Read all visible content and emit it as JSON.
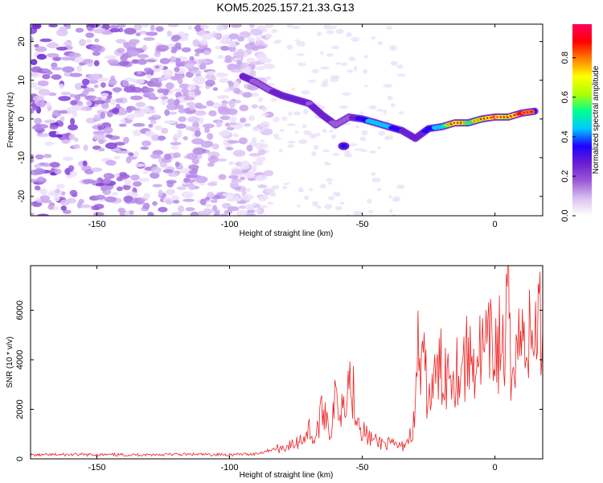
{
  "title": "KOM5.2025.157.21.33.G13",
  "chart_data": [
    {
      "type": "heatmap",
      "xlabel": "Height of straight line (km)",
      "ylabel": "Frequency (Hz)",
      "xlim": [
        -175,
        18
      ],
      "ylim": [
        -25,
        24.5
      ],
      "xticks": [
        -150,
        -100,
        -50,
        0
      ],
      "yticks": [
        -20,
        -10,
        0,
        10,
        20
      ],
      "colorbar": {
        "label": "Normalized spectral amplitude",
        "range": [
          0,
          0.97
        ],
        "ticks": [
          "0.0",
          "0.2",
          "0.4",
          "0.6",
          "0.8"
        ],
        "colors": [
          "#ffffff",
          "#d9c2f0",
          "#9b59d8",
          "#6a1fd0",
          "#2000ff",
          "#00c8ff",
          "#00ff90",
          "#b0ff00",
          "#ffff00",
          "#ff8000",
          "#ff0000",
          "#ff0060"
        ]
      },
      "ridge": [
        {
          "x": -95,
          "f": 11.0,
          "a": 0.25
        },
        {
          "x": -90,
          "f": 9.5,
          "a": 0.2
        },
        {
          "x": -85,
          "f": 7.5,
          "a": 0.22
        },
        {
          "x": -80,
          "f": 6.0,
          "a": 0.3
        },
        {
          "x": -75,
          "f": 5.0,
          "a": 0.28
        },
        {
          "x": -70,
          "f": 4.0,
          "a": 0.22
        },
        {
          "x": -65,
          "f": 1.0,
          "a": 0.25
        },
        {
          "x": -60,
          "f": -1.5,
          "a": 0.2
        },
        {
          "x": -55,
          "f": 0.5,
          "a": 0.22
        },
        {
          "x": -50,
          "f": 0.0,
          "a": 0.35
        },
        {
          "x": -45,
          "f": -1.0,
          "a": 0.45
        },
        {
          "x": -40,
          "f": -2.0,
          "a": 0.4
        },
        {
          "x": -35,
          "f": -3.0,
          "a": 0.3
        },
        {
          "x": -30,
          "f": -5.0,
          "a": 0.25
        },
        {
          "x": -25,
          "f": -2.5,
          "a": 0.35
        },
        {
          "x": -20,
          "f": -2.0,
          "a": 0.45
        },
        {
          "x": -15,
          "f": -1.0,
          "a": 0.7
        },
        {
          "x": -10,
          "f": -1.0,
          "a": 0.55
        },
        {
          "x": -5,
          "f": 0.0,
          "a": 0.6
        },
        {
          "x": 0,
          "f": 0.5,
          "a": 0.75
        },
        {
          "x": 5,
          "f": 0.5,
          "a": 0.6
        },
        {
          "x": 10,
          "f": 1.5,
          "a": 0.85
        },
        {
          "x": 15,
          "f": 2.0,
          "a": 0.8
        }
      ]
    },
    {
      "type": "line",
      "xlabel": "Height of straight line (km)",
      "ylabel": "SNR (10 * v/v)",
      "xlim": [
        -175,
        18
      ],
      "ylim": [
        0,
        7800
      ],
      "xticks": [
        -150,
        -100,
        -50,
        0
      ],
      "yticks": [
        0,
        2000,
        4000,
        6000
      ],
      "line_color": "#ee2222",
      "series": [
        {
          "x": [
            -175,
            -160,
            -140,
            -120,
            -100,
            -90,
            -85,
            -80,
            -75,
            -72,
            -70,
            -68,
            -66,
            -64,
            -62,
            -60,
            -58,
            -56,
            -55,
            -53,
            -51,
            -50,
            -48,
            -45,
            -40,
            -35,
            -32,
            -30,
            -29,
            -28,
            -27,
            -25,
            -22,
            -20,
            -18,
            -16,
            -14,
            -12,
            -10,
            -8,
            -6,
            -4,
            -2,
            0,
            2,
            4,
            5,
            6,
            7,
            8,
            10,
            12,
            14,
            16,
            18
          ],
          "y": [
            150,
            170,
            160,
            180,
            170,
            200,
            350,
            450,
            600,
            900,
            1200,
            700,
            1600,
            2100,
            1000,
            2500,
            2000,
            3100,
            3300,
            2500,
            1500,
            1200,
            900,
            700,
            600,
            500,
            900,
            1700,
            5300,
            2900,
            3800,
            2400,
            3300,
            3700,
            3500,
            3800,
            3600,
            3900,
            4100,
            4000,
            4300,
            4200,
            4500,
            4400,
            4700,
            4100,
            7500,
            2500,
            4800,
            5000,
            4700,
            5200,
            4500,
            5700,
            5200
          ]
        }
      ]
    }
  ]
}
